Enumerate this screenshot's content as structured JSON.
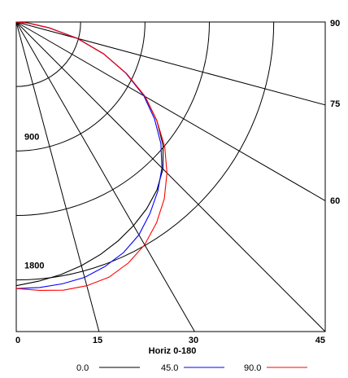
{
  "chart_data": {
    "type": "line",
    "chart_kind": "polar-quadrant (luminous intensity distribution)",
    "title": "",
    "xlabel": "Horiz 0-180",
    "ylabel": "",
    "angle_ticks_bottom": [
      "0",
      "15",
      "30",
      "45"
    ],
    "angle_ticks_right": [
      "60",
      "75",
      "90"
    ],
    "radial_ticks": [
      "900",
      "1800"
    ],
    "radial_max": 2160,
    "grid": true,
    "legend_position": "bottom",
    "angles_deg": [
      0,
      5,
      10,
      15,
      20,
      25,
      30,
      35,
      40,
      45,
      50,
      55,
      60,
      65,
      70,
      75,
      80,
      85,
      90
    ],
    "series": [
      {
        "name": "0.0",
        "color": "#000000",
        "values": [
          1840,
          1815,
          1790,
          1760,
          1725,
          1685,
          1640,
          1590,
          1530,
          1450,
          1340,
          1200,
          1040,
          850,
          650,
          440,
          230,
          80,
          0
        ]
      },
      {
        "name": "45.0",
        "color": "#0000ff",
        "values": [
          1860,
          1860,
          1855,
          1845,
          1815,
          1775,
          1715,
          1630,
          1540,
          1440,
          1320,
          1180,
          1030,
          845,
          650,
          445,
          235,
          85,
          0
        ]
      },
      {
        "name": "90.0",
        "color": "#ff0000",
        "values": [
          1860,
          1880,
          1900,
          1905,
          1895,
          1855,
          1795,
          1710,
          1610,
          1490,
          1355,
          1200,
          1040,
          850,
          650,
          440,
          230,
          80,
          0
        ]
      }
    ]
  }
}
